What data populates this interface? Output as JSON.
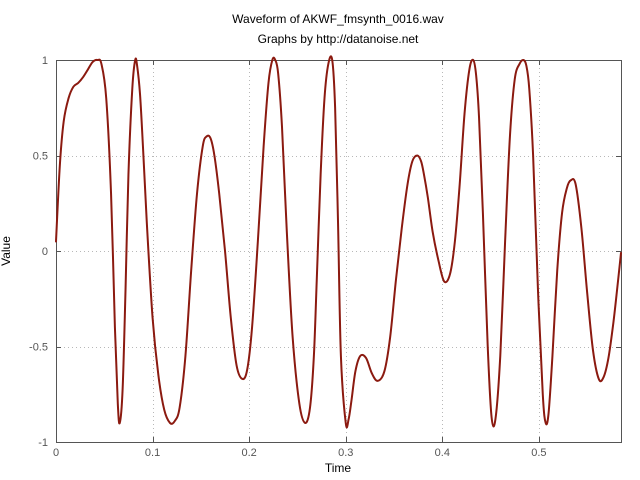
{
  "chart_data": {
    "type": "line",
    "title": "Waveform of AKWF_fmsynth_0016.wav",
    "subtitle": "Graphs by http://datanoise.net",
    "xlabel": "Time",
    "ylabel": "Value",
    "xlim": [
      0,
      0.585
    ],
    "ylim": [
      -1,
      1
    ],
    "xticks": [
      0,
      0.1,
      0.2,
      0.3,
      0.4,
      0.5
    ],
    "xtick_labels": [
      "0",
      "0.1",
      "0.2",
      "0.3",
      "0.4",
      "0.5"
    ],
    "yticks": [
      -1,
      -0.5,
      0,
      0.5,
      1
    ],
    "ytick_labels": [
      "-1",
      "-0.5",
      "0",
      "0.5",
      "1"
    ],
    "grid": true,
    "line_color": "#8b1a10",
    "series": [
      {
        "x": [
          0,
          0.004,
          0.008,
          0.013,
          0.018,
          0.023,
          0.028,
          0.033,
          0.038,
          0.043,
          0.047,
          0.052,
          0.057,
          0.061,
          0.064,
          0.066,
          0.069,
          0.072,
          0.075,
          0.079,
          0.082,
          0.084,
          0.087,
          0.09,
          0.094,
          0.1,
          0.106,
          0.112,
          0.118,
          0.123,
          0.128,
          0.134,
          0.14,
          0.146,
          0.152,
          0.156,
          0.16,
          0.164,
          0.169,
          0.175,
          0.181,
          0.187,
          0.193,
          0.198,
          0.203,
          0.209,
          0.215,
          0.22,
          0.224,
          0.227,
          0.23,
          0.234,
          0.239,
          0.245,
          0.252,
          0.258,
          0.263,
          0.267,
          0.27,
          0.274,
          0.278,
          0.282,
          0.286,
          0.289,
          0.292,
          0.295,
          0.3,
          0.303,
          0.306,
          0.31,
          0.315,
          0.321,
          0.327,
          0.333,
          0.34,
          0.346,
          0.352,
          0.358,
          0.364,
          0.369,
          0.374,
          0.378,
          0.381,
          0.385,
          0.39,
          0.396,
          0.402,
          0.408,
          0.413,
          0.418,
          0.423,
          0.428,
          0.432,
          0.435,
          0.438,
          0.442,
          0.447,
          0.451,
          0.455,
          0.46,
          0.465,
          0.47,
          0.475,
          0.48,
          0.484,
          0.487,
          0.49,
          0.494,
          0.499,
          0.504,
          0.507,
          0.51,
          0.514,
          0.519,
          0.524,
          0.529,
          0.533,
          0.538,
          0.544,
          0.55,
          0.556,
          0.562,
          0.567,
          0.572,
          0.577,
          0.581,
          0.585
        ],
        "values": [
          0.05,
          0.45,
          0.68,
          0.8,
          0.86,
          0.88,
          0.91,
          0.95,
          0.99,
          1.0,
          0.98,
          0.8,
          0.3,
          -0.4,
          -0.8,
          -0.9,
          -0.72,
          -0.2,
          0.4,
          0.85,
          1.0,
          0.97,
          0.82,
          0.55,
          0.15,
          -0.35,
          -0.65,
          -0.83,
          -0.9,
          -0.89,
          -0.82,
          -0.55,
          -0.1,
          0.3,
          0.55,
          0.6,
          0.59,
          0.5,
          0.3,
          0.0,
          -0.35,
          -0.6,
          -0.67,
          -0.62,
          -0.4,
          0.05,
          0.55,
          0.88,
          1.0,
          1.0,
          0.93,
          0.65,
          0.1,
          -0.45,
          -0.8,
          -0.9,
          -0.82,
          -0.55,
          -0.15,
          0.4,
          0.8,
          0.98,
          1.0,
          0.75,
          0.15,
          -0.55,
          -0.9,
          -0.88,
          -0.78,
          -0.63,
          -0.55,
          -0.56,
          -0.64,
          -0.68,
          -0.63,
          -0.45,
          -0.15,
          0.12,
          0.35,
          0.47,
          0.5,
          0.47,
          0.4,
          0.28,
          0.1,
          -0.05,
          -0.16,
          -0.12,
          0.05,
          0.35,
          0.72,
          0.95,
          1.0,
          0.92,
          0.7,
          0.2,
          -0.5,
          -0.87,
          -0.88,
          -0.55,
          0.05,
          0.6,
          0.9,
          0.98,
          1.0,
          0.97,
          0.85,
          0.5,
          -0.2,
          -0.75,
          -0.9,
          -0.85,
          -0.55,
          -0.1,
          0.2,
          0.33,
          0.37,
          0.35,
          0.12,
          -0.22,
          -0.52,
          -0.67,
          -0.66,
          -0.56,
          -0.38,
          -0.2,
          -0.01
        ]
      }
    ]
  }
}
